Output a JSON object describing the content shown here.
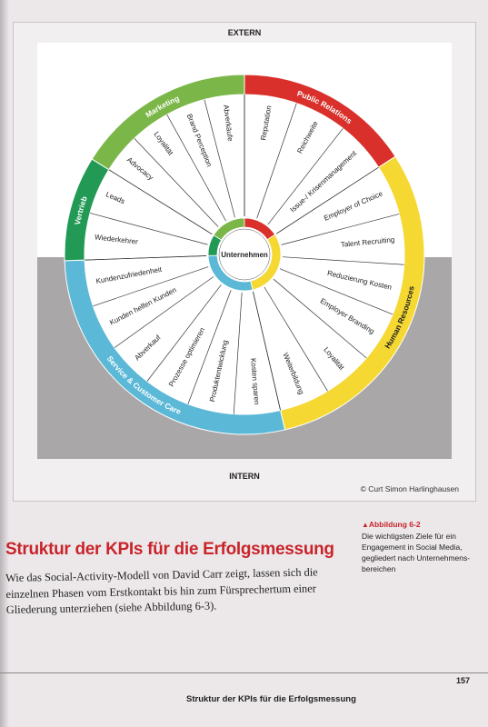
{
  "figure": {
    "top_label": "EXTERN",
    "bottom_label": "INTERN",
    "center_label": "Unternehmen",
    "credit": "© Curt Simon Harlinghausen",
    "segments": [
      {
        "name": "Marketing",
        "color": "#7ab648",
        "items": [
          "Advocacy",
          "Loyalität",
          "Brand Perception",
          "Abverkäufe"
        ]
      },
      {
        "name": "Public Relations",
        "color": "#d9302b",
        "items": [
          "Reputation",
          "Reichweite",
          "Issue-/ Krisenmanagement"
        ]
      },
      {
        "name": "Human Resources",
        "color": "#f5d832",
        "items": [
          "Employer of Choice",
          "Talent Recruiting",
          "Reduzierung Kosten",
          "Employer Branding",
          "Loyalität",
          "Weiterbildung"
        ]
      },
      {
        "name": "Service & Customer Care",
        "color": "#5bb8d6",
        "items": [
          "Kosten sparen",
          "Produktentwicklung",
          "Prozesse optimieren",
          "Abverkauf",
          "Kunden helfen Kunden",
          "Kundenzufriedenheit"
        ]
      },
      {
        "name": "Vertrieb",
        "color": "#229a55",
        "items": [
          "Wiederkehrer",
          "Leads"
        ]
      }
    ]
  },
  "caption": {
    "label": "Abbildung 6-2",
    "text": "Die wichtigsten Ziele für ein Engagement in Social Media, gegliedert nach Unternehmens-bereichen"
  },
  "section": {
    "heading": "Struktur der KPIs für die Erfolgsmessung",
    "body": "Wie das Social-Activity-Modell von David Carr zeigt, lassen sich die einzelnen Phasen vom Erstkontakt bis hin zum Fürsprechertum einer Gliederung unterziehen (siehe Abbildung 6-3)."
  },
  "footer": {
    "page_number": "157",
    "running_title": "Struktur der KPIs für die Erfolgsmessung"
  }
}
